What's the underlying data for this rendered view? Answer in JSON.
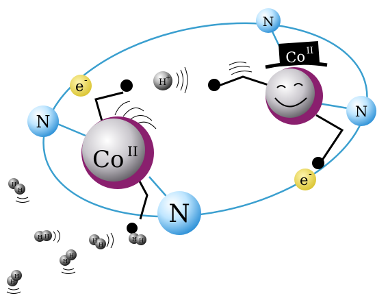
{
  "title": "Cobalt catalyst hydrogen evolution illustration",
  "colors": {
    "ring": "#3a9fcf",
    "nitrogen_light": "#e8f6ff",
    "nitrogen_dark": "#2a8fd6",
    "cobalt_rim": "#8a1f6e",
    "cobalt_light": "#ffffff",
    "cobalt_dark": "#6d6a70",
    "electron": "#e8d64a",
    "black": "#000000"
  },
  "labels": {
    "nitrogen": "N",
    "cobalt": "Co",
    "cobalt_oxidation": "II",
    "hat_cobalt": "Co",
    "hat_oxidation": "II",
    "electron": "e",
    "electron_charge": "-",
    "proton": "H",
    "proton_charge": "+",
    "hydrogen": "H"
  },
  "icons": {
    "hat": "top-hat-icon",
    "face": "smiley-face-icon",
    "proton": "proton-sphere-icon",
    "hydrogen": "hydrogen-molecule-icon"
  }
}
